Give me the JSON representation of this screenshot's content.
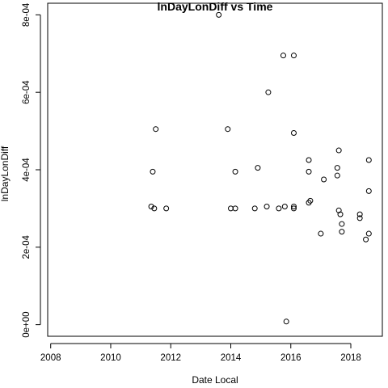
{
  "chart_data": {
    "type": "scatter",
    "title": "lnDayLonDiff vs Time",
    "xlabel": "Date Local",
    "ylabel": "lnDayLonDiff",
    "xlim": [
      2007.9,
      2019.05
    ],
    "ylim": [
      -3e-05,
      0.00083
    ],
    "x_ticks": [
      2008,
      2010,
      2012,
      2014,
      2016,
      2018
    ],
    "x_tick_labels": [
      "2008",
      "2010",
      "2012",
      "2014",
      "2016",
      "2018"
    ],
    "y_ticks": [
      0,
      0.0002,
      0.0004,
      0.0006,
      0.0008
    ],
    "y_tick_labels": [
      "0e+00",
      "2e-04",
      "4e-04",
      "6e-04",
      "8e-04"
    ],
    "marker": "open-circle",
    "grid": false,
    "legend": "none",
    "color": "#000000",
    "series": [
      {
        "points": [
          [
            2013.6,
            0.0008
          ],
          [
            2015.75,
            0.000695
          ],
          [
            2016.1,
            0.000695
          ],
          [
            2015.25,
            0.0006
          ],
          [
            2016.1,
            0.000495
          ],
          [
            2011.5,
            0.000505
          ],
          [
            2013.9,
            0.000505
          ],
          [
            2011.4,
            0.000395
          ],
          [
            2014.15,
            0.000395
          ],
          [
            2014.9,
            0.000405
          ],
          [
            2016.6,
            0.000395
          ],
          [
            2016.6,
            0.000425
          ],
          [
            2017.6,
            0.00045
          ],
          [
            2017.55,
            0.000405
          ],
          [
            2017.55,
            0.000385
          ],
          [
            2018.6,
            0.000425
          ],
          [
            2017.1,
            0.000375
          ],
          [
            2018.6,
            0.000345
          ],
          [
            2011.35,
            0.000305
          ],
          [
            2011.45,
            0.0003
          ],
          [
            2011.85,
            0.0003
          ],
          [
            2014.0,
            0.0003
          ],
          [
            2014.15,
            0.0003
          ],
          [
            2014.8,
            0.0003
          ],
          [
            2015.2,
            0.000305
          ],
          [
            2015.6,
            0.0003
          ],
          [
            2015.8,
            0.000305
          ],
          [
            2016.1,
            0.0003
          ],
          [
            2016.1,
            0.000305
          ],
          [
            2016.6,
            0.000315
          ],
          [
            2016.65,
            0.00032
          ],
          [
            2017.6,
            0.000295
          ],
          [
            2017.65,
            0.000285
          ],
          [
            2018.3,
            0.000285
          ],
          [
            2018.3,
            0.000275
          ],
          [
            2017.0,
            0.000235
          ],
          [
            2018.6,
            0.000235
          ],
          [
            2017.7,
            0.00026
          ],
          [
            2017.7,
            0.00024
          ],
          [
            2018.5,
            0.00022
          ],
          [
            2015.85,
            8e-06
          ]
        ]
      }
    ]
  }
}
